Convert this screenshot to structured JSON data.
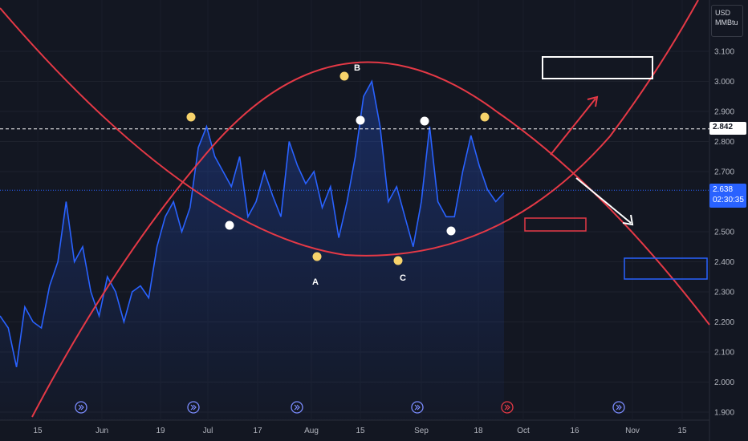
{
  "price_axis": {
    "unit_line1": "USD",
    "unit_line2": "MMBtu",
    "ticks": [
      "3.100",
      "3.000",
      "2.900",
      "2.800",
      "2.700",
      "2.500",
      "2.400",
      "2.300",
      "2.200",
      "2.100",
      "2.000",
      "1.900"
    ],
    "reference_price": "2.842",
    "last_price": "2.638",
    "countdown": "02:30:35"
  },
  "time_axis": {
    "labels": [
      "15",
      "Jun",
      "19",
      "Jul",
      "17",
      "Aug",
      "15",
      "Sep",
      "18",
      "Oct",
      "16",
      "Nov",
      "15"
    ]
  },
  "annotations": {
    "point_a": "A",
    "point_b": "B",
    "point_c": "C"
  },
  "colors": {
    "background": "#131722",
    "price_line": "#2962ff",
    "arc": "#e53946",
    "highlight_dot": "#f7d36b",
    "low_dot": "#ffffff",
    "blue_box": "#2962ff"
  },
  "chart_data": {
    "type": "line",
    "title": "",
    "xlabel": "",
    "ylabel": "",
    "ylim": [
      1.88,
      3.15
    ],
    "series": [
      {
        "values": [
          2.22,
          2.18,
          2.05,
          2.25,
          2.2,
          2.18,
          2.32,
          2.4,
          2.6,
          2.4,
          2.45,
          2.3,
          2.22,
          2.35,
          2.3,
          2.2,
          2.3,
          2.32,
          2.28,
          2.45,
          2.55,
          2.6,
          2.5,
          2.58,
          2.78,
          2.85,
          2.75,
          2.7,
          2.65,
          2.75,
          2.55,
          2.6,
          2.7,
          2.62,
          2.55,
          2.8,
          2.72,
          2.66,
          2.7,
          2.58,
          2.65,
          2.48,
          2.6,
          2.75,
          2.95,
          3.0,
          2.85,
          2.6,
          2.65,
          2.55,
          2.45,
          2.6,
          2.85,
          2.6,
          2.55,
          2.55,
          2.7,
          2.82,
          2.72,
          2.64,
          2.6,
          2.63
        ]
      }
    ]
  }
}
